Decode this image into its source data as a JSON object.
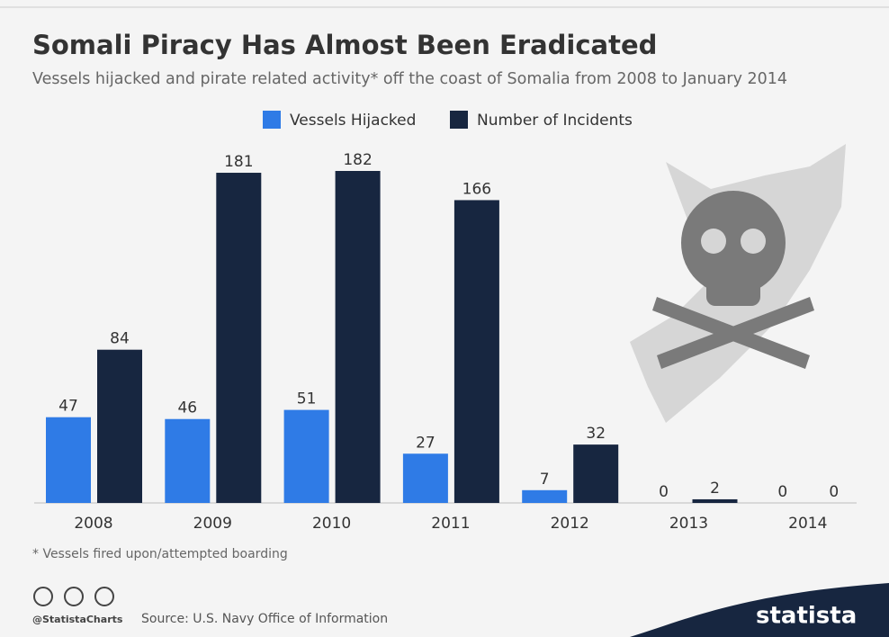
{
  "chart_data": {
    "type": "bar",
    "title": "Somali Piracy Has Almost Been Eradicated",
    "subtitle": "Vessels hijacked and pirate related activity* off the coast of Somalia from 2008 to January 2014",
    "categories": [
      "2008",
      "2009",
      "2010",
      "2011",
      "2012",
      "2013",
      "2014"
    ],
    "series": [
      {
        "name": "Vessels Hijacked",
        "color": "#2f7be6",
        "values": [
          47,
          46,
          51,
          27,
          7,
          0,
          0
        ]
      },
      {
        "name": "Number of Incidents",
        "color": "#172640",
        "values": [
          84,
          181,
          182,
          166,
          32,
          2,
          0
        ]
      }
    ],
    "legend": "top",
    "footnote": "* Vessels fired upon/attempted boarding",
    "credit": "@StatistaCharts",
    "source": "Source: U.S. Navy Office of Information",
    "logo": "statista"
  }
}
